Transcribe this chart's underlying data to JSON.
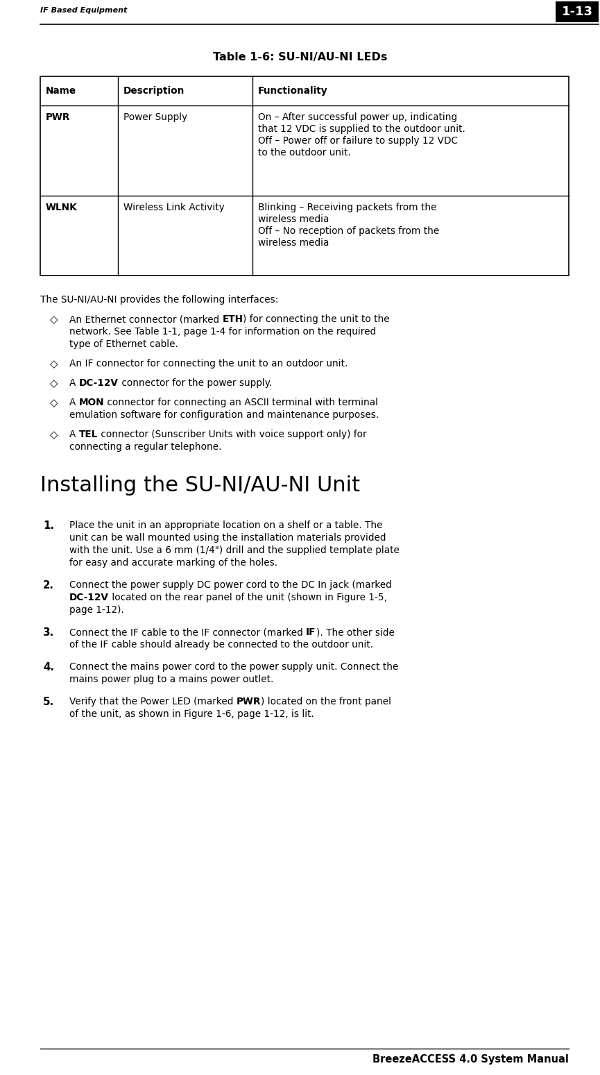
{
  "header_left": "IF Based Equipment",
  "header_right": "1-13",
  "footer_right": "BreezeACCESS 4.0 System Manual",
  "table_title": "Table 1-6: SU-NI/AU-NI LEDs",
  "table_headers": [
    "Name",
    "Description",
    "Functionality"
  ],
  "table_rows": [
    {
      "name": "PWR",
      "description": "Power Supply",
      "functionality_lines": [
        "On – After successful power up, indicating",
        "that 12 VDC is supplied to the outdoor unit.",
        "Off – Power off or failure to supply 12 VDC",
        "to the outdoor unit."
      ]
    },
    {
      "name": "WLNK",
      "description": "Wireless Link Activity",
      "functionality_lines": [
        "Blinking – Receiving packets from the",
        "wireless media",
        "Off – No reception of packets from the",
        "wireless media"
      ]
    }
  ],
  "body_intro": "The SU-NI/AU-NI provides the following interfaces:",
  "bullet_items": [
    [
      "An Ethernet connector (marked ",
      "ETH",
      ") for connecting the unit to the",
      "network. See Table 1-1, page 1-4 for information on the required",
      "type of Ethernet cable."
    ],
    [
      "An IF connector for connecting the unit to an outdoor unit.",
      "",
      "",
      "",
      ""
    ],
    [
      "A ",
      "DC-12V",
      " connector for the power supply.",
      "",
      ""
    ],
    [
      "A ",
      "MON",
      " connector for connecting an ASCII terminal with terminal",
      "emulation software for configuration and maintenance purposes.",
      ""
    ],
    [
      "A ",
      "TEL",
      " connector (Sunscriber Units with voice support only) for",
      "connecting a regular telephone.",
      ""
    ]
  ],
  "section_title": "Installing the SU-NI/AU-NI Unit",
  "numbered_items": [
    {
      "parts": [
        [
          "",
          "Place the unit in an appropriate location on a shelf or a table. The"
        ]
      ],
      "cont": [
        "unit can be wall mounted using the installation materials provided",
        "with the unit. Use a 6 mm (1/4\") drill and the supplied template plate",
        "for easy and accurate marking of the holes."
      ]
    },
    {
      "parts": [
        [
          "",
          "Connect the power supply DC power cord to the DC In jack (marked"
        ]
      ],
      "cont": [
        "DC-12V_BOLD located on the rear panel of the unit (shown in Figure 1-5,",
        "page 1-12)."
      ]
    },
    {
      "parts": [
        [
          "",
          "Connect the IF cable to the IF connector (marked ",
          "IF",
          "). The other side"
        ]
      ],
      "cont": [
        "of the IF cable should already be connected to the outdoor unit."
      ]
    },
    {
      "parts": [
        [
          "",
          "Connect the mains power cord to the power supply unit. Connect the"
        ]
      ],
      "cont": [
        "mains power plug to a mains power outlet."
      ]
    },
    {
      "parts": [
        [
          "",
          "Verify that the Power LED (marked ",
          "PWR",
          ") located on the front panel"
        ]
      ],
      "cont": [
        "of the unit, as shown in Figure 1-6, page 1-12, is lit."
      ]
    }
  ],
  "bg_color": "#ffffff",
  "text_color": "#000000",
  "font_size_header": 8.0,
  "font_size_body": 9.8,
  "font_size_table": 9.8,
  "font_size_section": 22,
  "font_size_table_title": 11.5,
  "font_size_footer": 10.5
}
